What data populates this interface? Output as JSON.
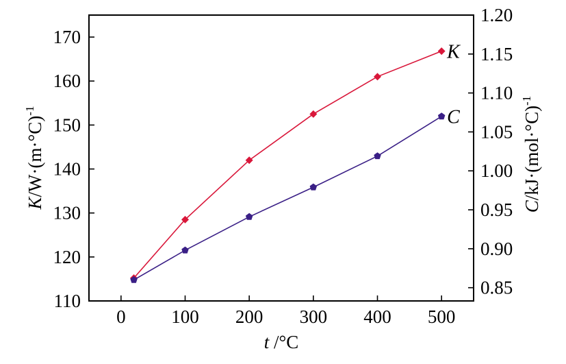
{
  "chart_data": {
    "type": "line",
    "x": [
      20,
      100,
      200,
      300,
      400,
      500
    ],
    "xlabel_var": "t",
    "xlabel_unit": " /°C",
    "xlim": [
      -50,
      550
    ],
    "xticks": [
      0,
      100,
      200,
      300,
      400,
      500
    ],
    "y_left": {
      "label_var": "K",
      "label_unit": "/W·(m·°C)",
      "label_sup": "-1",
      "lim": [
        110,
        175
      ],
      "ticks": [
        110,
        120,
        130,
        140,
        150,
        160,
        170
      ]
    },
    "y_right": {
      "label_var": "C",
      "label_unit": "/kJ·(mol·°C)",
      "label_sup": "-1",
      "lim": [
        0.833,
        1.2
      ],
      "ticks": [
        0.85,
        0.9,
        0.95,
        1.0,
        1.05,
        1.1,
        1.15,
        1.2
      ]
    },
    "series": [
      {
        "name": "K",
        "axis": "left",
        "color": "#d9173a",
        "marker": "diamond",
        "values": [
          115.2,
          128.5,
          142.0,
          152.5,
          161.0,
          166.8
        ]
      },
      {
        "name": "C",
        "axis": "right",
        "color": "#3a1f86",
        "marker": "pentagon",
        "values": [
          0.86,
          0.898,
          0.941,
          0.979,
          1.019,
          1.07
        ]
      }
    ],
    "grid": false
  }
}
